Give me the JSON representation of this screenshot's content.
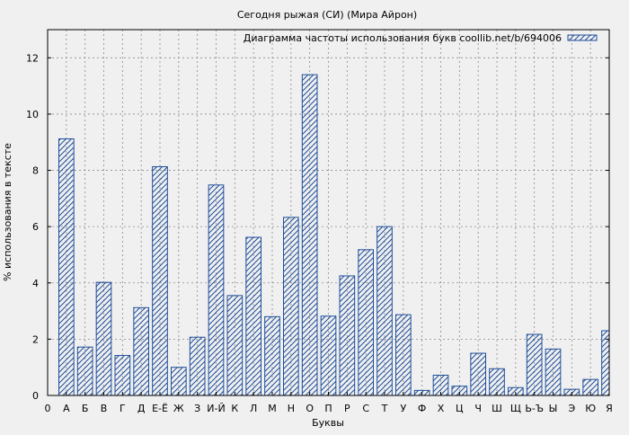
{
  "chart_data": {
    "type": "bar",
    "title": "Сегодня рыжая (СИ) (Мира Айрон)",
    "xlabel": "Буквы",
    "ylabel": "% использования в тексте",
    "legend": {
      "label": "Диаграмма частоты использования букв coollib.net/b/694006",
      "placement": "top-right"
    },
    "x_zero_label": "0",
    "categories": [
      "А",
      "Б",
      "В",
      "Г",
      "Д",
      "Е-Ё",
      "Ж",
      "З",
      "И-Й",
      "К",
      "Л",
      "М",
      "Н",
      "О",
      "П",
      "Р",
      "С",
      "Т",
      "У",
      "Ф",
      "Х",
      "Ц",
      "Ч",
      "Ш",
      "Щ",
      "Ь-Ъ",
      "Ы",
      "Э",
      "Ю",
      "Я"
    ],
    "values": [
      9.12,
      1.72,
      4.02,
      1.42,
      3.12,
      8.13,
      1.0,
      2.07,
      7.48,
      3.55,
      5.62,
      2.8,
      6.33,
      11.4,
      2.82,
      4.25,
      5.18,
      6.0,
      2.87,
      0.18,
      0.72,
      0.33,
      1.5,
      0.95,
      0.28,
      2.17,
      1.65,
      0.22,
      0.57,
      2.3
    ],
    "ylim": [
      0,
      13
    ],
    "yticks": [
      0,
      2,
      4,
      6,
      8,
      10,
      12
    ],
    "grid": true,
    "colors": {
      "bar_stroke": "#1f4e9a",
      "hatch": "#1f4e9a",
      "grid": "#8a8a8a",
      "background": "#f0f0f0"
    }
  }
}
